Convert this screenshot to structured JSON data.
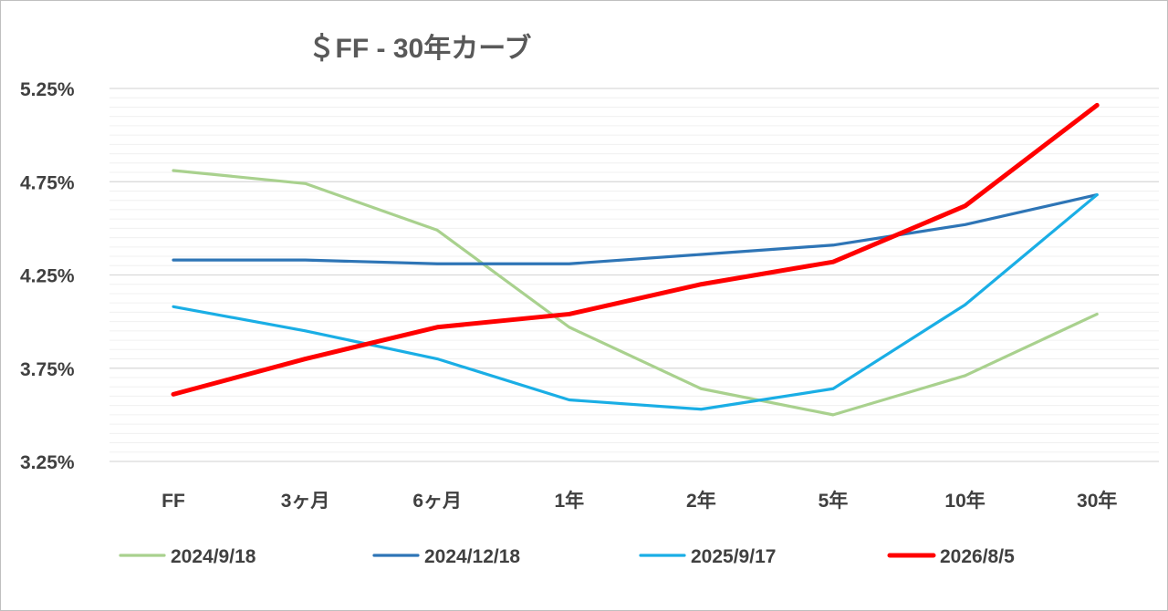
{
  "chart_data": {
    "type": "line",
    "title": "＄FF - 30年カーブ",
    "categories": [
      "FF",
      "3ヶ月",
      "6ヶ月",
      "1年",
      "2年",
      "5年",
      "10年",
      "30年"
    ],
    "y_tick_labels": [
      "5.25%",
      "4.75%",
      "4.25%",
      "3.75%",
      "3.25%"
    ],
    "ylim": [
      3.25,
      5.25
    ],
    "y_ticks": [
      5.25,
      4.75,
      4.25,
      3.75,
      3.25
    ],
    "minor_grid_step": 0.05,
    "grid": true,
    "legend_position": "bottom",
    "series": [
      {
        "name": "2024/9/18",
        "color": "#a9d18e",
        "values": [
          4.81,
          4.74,
          4.49,
          3.97,
          3.64,
          3.5,
          3.71,
          4.04
        ]
      },
      {
        "name": "2024/12/18",
        "color": "#2e75b6",
        "values": [
          4.33,
          4.33,
          4.31,
          4.31,
          4.36,
          4.41,
          4.52,
          4.68
        ]
      },
      {
        "name": "2025/9/17",
        "color": "#1aaee5",
        "values": [
          4.08,
          3.95,
          3.8,
          3.58,
          3.53,
          3.64,
          4.09,
          4.68
        ]
      },
      {
        "name": "2026/8/5",
        "color": "#ff0000",
        "values": [
          3.61,
          3.8,
          3.97,
          4.04,
          4.2,
          4.32,
          4.62,
          5.16
        ]
      }
    ]
  }
}
